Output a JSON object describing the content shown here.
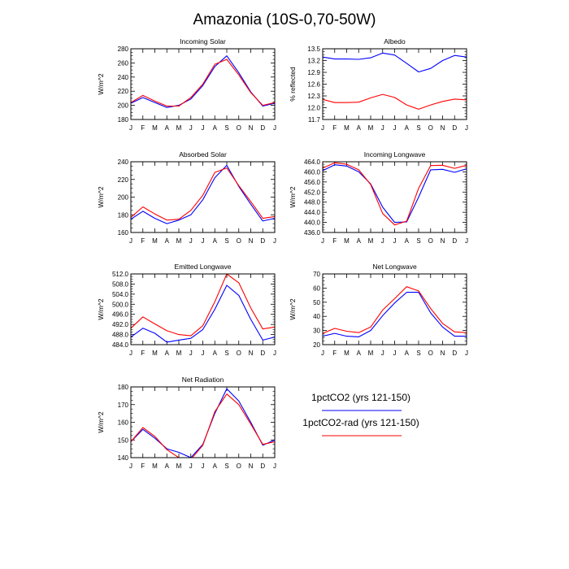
{
  "title": "Amazonia (10S-0,70-50W)",
  "series_colors": [
    "#0000ff",
    "#ff0000"
  ],
  "legend": [
    {
      "label": "1pctCO2 (yrs 121-150)",
      "color": "#0000ff"
    },
    {
      "label": "1pctCO2-rad (yrs 121-150)",
      "color": "#ff0000"
    }
  ],
  "chart_data": [
    {
      "type": "line",
      "title": "Incoming Solar",
      "ylabel": "W/m^2",
      "categories": [
        "J",
        "F",
        "M",
        "A",
        "M",
        "J",
        "J",
        "A",
        "S",
        "O",
        "N",
        "D",
        "J"
      ],
      "ylim": [
        180,
        280
      ],
      "yticks": [
        180,
        200,
        220,
        240,
        260,
        280
      ],
      "ytick_labels": [
        "180",
        "200",
        "220",
        "240",
        "260",
        "280"
      ],
      "series": [
        {
          "values": [
            203,
            211,
            204,
            197,
            200,
            209,
            228,
            255,
            270,
            246,
            219,
            199,
            203
          ]
        },
        {
          "values": [
            204,
            214,
            206,
            199,
            199,
            211,
            230,
            258,
            265,
            243,
            218,
            200,
            204
          ]
        }
      ]
    },
    {
      "type": "line",
      "title": "Albedo",
      "ylabel": "% reflected",
      "categories": [
        "J",
        "F",
        "M",
        "A",
        "M",
        "J",
        "J",
        "A",
        "S",
        "O",
        "N",
        "D",
        "J"
      ],
      "ylim": [
        11.7,
        13.5
      ],
      "yticks": [
        11.7,
        12.0,
        12.3,
        12.6,
        12.9,
        13.2,
        13.5
      ],
      "ytick_labels": [
        "11.7",
        "12.0",
        "12.3",
        "12.6",
        "12.9",
        "13.2",
        "13.5"
      ],
      "series": [
        {
          "values": [
            13.29,
            13.24,
            13.24,
            13.23,
            13.27,
            13.39,
            13.34,
            13.13,
            12.91,
            13.0,
            13.2,
            13.33,
            13.29
          ]
        },
        {
          "values": [
            12.21,
            12.13,
            12.13,
            12.14,
            12.25,
            12.34,
            12.26,
            12.07,
            11.96,
            12.07,
            12.16,
            12.22,
            12.2
          ]
        }
      ]
    },
    {
      "type": "line",
      "title": "Absorbed Solar",
      "ylabel": "W/m^2",
      "categories": [
        "J",
        "F",
        "M",
        "A",
        "M",
        "J",
        "J",
        "A",
        "S",
        "O",
        "N",
        "D",
        "J"
      ],
      "ylim": [
        160,
        240
      ],
      "yticks": [
        160,
        180,
        200,
        220,
        240
      ],
      "ytick_labels": [
        "160",
        "180",
        "200",
        "220",
        "240"
      ],
      "series": [
        {
          "values": [
            175,
            184,
            176,
            170,
            174,
            180,
            197,
            222,
            236,
            212,
            192,
            173,
            176
          ]
        },
        {
          "values": [
            177,
            189,
            181,
            174,
            175,
            185,
            202,
            228,
            233,
            213,
            195,
            176,
            178
          ]
        }
      ]
    },
    {
      "type": "line",
      "title": "Incoming Longwave",
      "ylabel": "W/m^2",
      "categories": [
        "J",
        "F",
        "M",
        "A",
        "M",
        "J",
        "J",
        "A",
        "S",
        "O",
        "N",
        "D",
        "J"
      ],
      "ylim": [
        436,
        464
      ],
      "yticks": [
        436,
        440,
        444,
        448,
        452,
        456,
        460,
        464
      ],
      "ytick_labels": [
        "436.0",
        "440.0",
        "444.0",
        "448.0",
        "452.0",
        "456.0",
        "460.0",
        "464.0"
      ],
      "series": [
        {
          "values": [
            460.5,
            462.8,
            462.3,
            460.0,
            455.2,
            446.0,
            440.0,
            440.2,
            450.0,
            460.8,
            461.0,
            459.8,
            461.2
          ]
        },
        {
          "values": [
            461.5,
            463.6,
            463.0,
            460.8,
            455.0,
            443.5,
            439.0,
            440.5,
            453.5,
            462.5,
            462.6,
            461.4,
            462.6
          ]
        }
      ]
    },
    {
      "type": "line",
      "title": "Emitted Longwave",
      "ylabel": "W/m^2",
      "categories": [
        "J",
        "F",
        "M",
        "A",
        "M",
        "J",
        "J",
        "A",
        "S",
        "O",
        "N",
        "D",
        "J"
      ],
      "ylim": [
        484,
        512
      ],
      "yticks": [
        484,
        488,
        492,
        496,
        500,
        504,
        508,
        512
      ],
      "ytick_labels": [
        "484.0",
        "488.0",
        "492.0",
        "496.0",
        "500.0",
        "504.0",
        "508.0",
        "512.0"
      ],
      "series": [
        {
          "values": [
            487.0,
            490.5,
            488.5,
            485.0,
            485.8,
            486.5,
            490.0,
            498.0,
            507.5,
            503.5,
            494.0,
            485.8,
            487.0
          ]
        },
        {
          "values": [
            490.5,
            495.0,
            492.2,
            489.5,
            488.0,
            487.5,
            491.5,
            501.0,
            512.0,
            508.5,
            498.5,
            490.2,
            491.0
          ]
        }
      ]
    },
    {
      "type": "line",
      "title": "Net Longwave",
      "ylabel": "W/m^2",
      "categories": [
        "J",
        "F",
        "M",
        "A",
        "M",
        "J",
        "J",
        "A",
        "S",
        "O",
        "N",
        "D",
        "J"
      ],
      "ylim": [
        20,
        70
      ],
      "yticks": [
        20,
        30,
        40,
        50,
        60,
        70
      ],
      "ytick_labels": [
        "20",
        "30",
        "40",
        "50",
        "60",
        "70"
      ],
      "series": [
        {
          "values": [
            26,
            28,
            26,
            25.5,
            30,
            40.5,
            49.5,
            57,
            57,
            42.5,
            32.5,
            26,
            26
          ]
        },
        {
          "values": [
            28,
            31.5,
            29.5,
            28.5,
            32.5,
            44.5,
            52.5,
            61,
            58,
            45.5,
            35,
            29,
            28.5
          ]
        }
      ]
    },
    {
      "type": "line",
      "title": "Net Radiation",
      "ylabel": "W/m^2",
      "categories": [
        "J",
        "F",
        "M",
        "A",
        "M",
        "J",
        "J",
        "A",
        "S",
        "O",
        "N",
        "D",
        "J"
      ],
      "ylim": [
        140,
        180
      ],
      "yticks": [
        140,
        150,
        160,
        170,
        180
      ],
      "ytick_labels": [
        "140",
        "150",
        "160",
        "170",
        "180"
      ],
      "series": [
        {
          "values": [
            149,
            156,
            151,
            145,
            143,
            140,
            147.5,
            165,
            179,
            172,
            160,
            147,
            150
          ]
        },
        {
          "values": [
            149,
            157,
            152,
            144.5,
            140,
            139,
            147,
            166,
            176,
            170,
            159,
            147.5,
            149
          ]
        }
      ]
    }
  ]
}
